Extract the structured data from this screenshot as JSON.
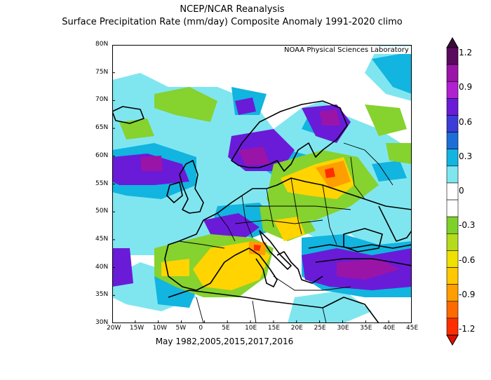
{
  "title": {
    "line1": "NCEP/NCAR Reanalysis",
    "line2": "Surface Precipitation Rate (mm/day) Composite Anomaly 1991-2020 climo"
  },
  "credit": "NOAA Physical Sciences Laboratory",
  "subtitle_bottom": "May 1982,2005,2015,2017,2016",
  "axes": {
    "lat_labels": [
      "80N",
      "75N",
      "70N",
      "65N",
      "60N",
      "55N",
      "50N",
      "45N",
      "40N",
      "35N",
      "30N"
    ],
    "lon_labels": [
      "20W",
      "15W",
      "10W",
      "5W",
      "0",
      "5E",
      "10E",
      "15E",
      "20E",
      "25E",
      "30E",
      "35E",
      "40E",
      "45E"
    ],
    "lat_range": [
      30,
      80
    ],
    "lon_range": [
      -20,
      45
    ]
  },
  "colorbar": {
    "labels": [
      "1.2",
      "0.9",
      "0.6",
      "0.3",
      "0",
      "-0.3",
      "-0.6",
      "-0.9",
      "-1.2"
    ],
    "colors_top_to_bottom": [
      "#5a0a5e",
      "#9b14a8",
      "#b020d0",
      "#6a1bd8",
      "#3c3cd8",
      "#1e6ed8",
      "#12b4e0",
      "#7fe6f0",
      "#ffffff",
      "#ffffff",
      "#7ed02a",
      "#b4dc1c",
      "#f0e000",
      "#ffc800",
      "#ff9e00",
      "#ff6a00",
      "#ff2e00"
    ]
  },
  "colors": {
    "dry_strong": "#ff6a00",
    "dry_moderate": "#ffd400",
    "dry_weak": "#86d22e",
    "wet_weak": "#7fe6f0",
    "wet_moderate": "#12b4e0",
    "wet_strong": "#6a1bd8",
    "wet_very_strong": "#9b14a8"
  }
}
